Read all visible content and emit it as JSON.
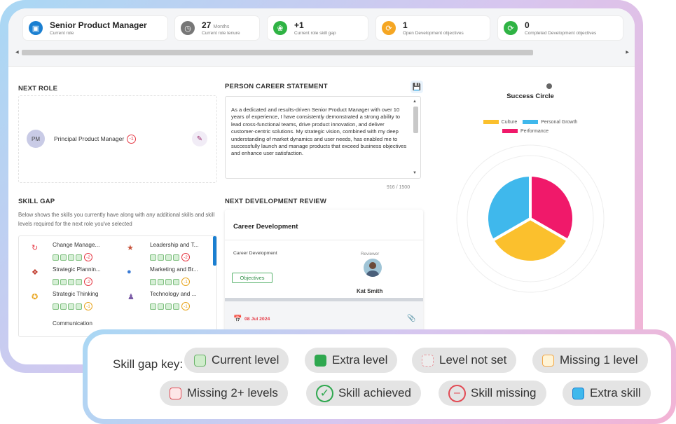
{
  "header": {
    "cards": [
      {
        "value": "Senior Product Manager",
        "unit": "",
        "label": "Current role",
        "icon": "briefcase-icon",
        "color": "#1a7fd1"
      },
      {
        "value": "27",
        "unit": "Months",
        "label": "Current role tenure",
        "icon": "clock-icon",
        "color": "#777777"
      },
      {
        "value": "+1",
        "unit": "",
        "label": "Current role skill gap",
        "icon": "skills-icon",
        "color": "#2fb344"
      },
      {
        "value": "1",
        "unit": "",
        "label": "Open Development objectives",
        "icon": "refresh-icon",
        "color": "#f5a623"
      },
      {
        "value": "0",
        "unit": "",
        "label": "Completed Development objectives",
        "icon": "refresh-icon",
        "color": "#2fb344"
      }
    ]
  },
  "next_role": {
    "title": "NEXT ROLE",
    "initials": "PM",
    "role": "Principal Product Manager",
    "gap": "-1"
  },
  "statement": {
    "title": "PERSON CAREER STATEMENT",
    "text": "As a dedicated and results-driven Senior Product Manager with over 10 years of experience, I have consistently demonstrated a strong ability to lead cross-functional teams, drive product innovation, and deliver customer-centric solutions. My strategic vision, combined with my deep understanding of market dynamics and user needs, has enabled me to successfully launch and manage products that exceed business objectives and enhance user satisfaction.",
    "counter": "916 / 1500"
  },
  "skill_gap": {
    "title": "SKILL GAP",
    "description": "Below shows the skills you currently have along with any additional skills and skill levels required for the next role you've selected",
    "items": [
      {
        "name": "Change Manage...",
        "gap": "-2"
      },
      {
        "name": "Leadership and T...",
        "gap": "-2"
      },
      {
        "name": "Strategic Plannin...",
        "gap": "-2"
      },
      {
        "name": "Marketing and Br...",
        "gap": "-1"
      },
      {
        "name": "Strategic Thinking",
        "gap": "-1"
      },
      {
        "name": "Technology and ...",
        "gap": "-1"
      },
      {
        "name": "Communication",
        "gap": ""
      }
    ]
  },
  "review": {
    "title": "NEXT DEVELOPMENT REVIEW",
    "card_title": "Career Development",
    "type": "Career Development",
    "reviewer_label": "Reviewer",
    "reviewer": "Kat Smith",
    "button": "Objectives",
    "date": "08 Jul 2024"
  },
  "chart_data": {
    "type": "pie",
    "title": "Success Circle",
    "categories": [
      "Culture",
      "Personal Growth",
      "Performance"
    ],
    "values": [
      1,
      1,
      1
    ],
    "colors": [
      "#fbc02d",
      "#3fb8ec",
      "#f0196a"
    ],
    "legend_position": "top"
  },
  "key": {
    "label": "Skill gap key:",
    "items": [
      {
        "label": "Current level",
        "icon": "current-level-swatch"
      },
      {
        "label": "Extra level",
        "icon": "extra-level-swatch"
      },
      {
        "label": "Level not set",
        "icon": "level-not-set-swatch"
      },
      {
        "label": "Missing 1 level",
        "icon": "missing-1-level-swatch"
      },
      {
        "label": "Missing 2+ levels",
        "icon": "missing-2-levels-swatch"
      },
      {
        "label": "Skill achieved",
        "icon": "check-circle-icon"
      },
      {
        "label": "Skill missing",
        "icon": "minus-circle-icon"
      },
      {
        "label": "Extra skill",
        "icon": "extra-skill-swatch"
      }
    ]
  }
}
